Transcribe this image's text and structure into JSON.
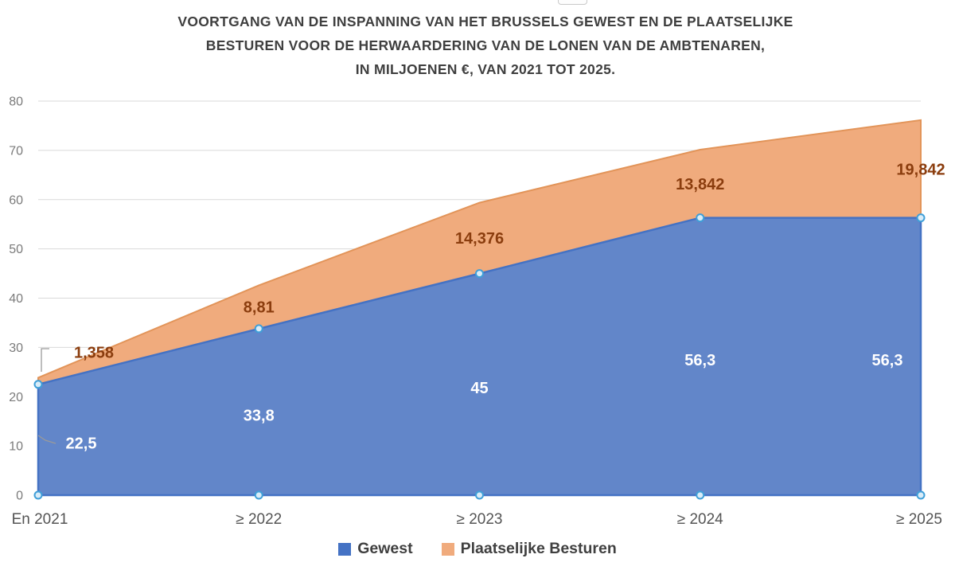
{
  "title": {
    "line1": "VOORTGANG VAN DE INSPANNING VAN HET BRUSSELS GEWEST EN DE PLAATSELIJKE",
    "line2": "BESTUREN VOOR DE HERWAARDERING VAN DE LONEN VAN DE AMBTENAREN,",
    "line3": "IN MILJOENEN €, VAN 2021 TOT 2025."
  },
  "chart_data": {
    "type": "area",
    "stacked": true,
    "title": "VOORTGANG VAN DE INSPANNING VAN HET BRUSSELS GEWEST EN DE PLAATSELIJKE BESTUREN VOOR DE HERWAARDERING VAN DE LONEN VAN DE AMBTENAREN, IN MILJOENEN €, VAN 2021 TOT 2025.",
    "categories": [
      "En 2021",
      "≥ 2022",
      "≥ 2023",
      "≥ 2024",
      "≥ 2025"
    ],
    "series": [
      {
        "name": "Gewest",
        "values": [
          22.5,
          33.8,
          45,
          56.3,
          56.3
        ],
        "labels": [
          "22,5",
          "33,8",
          "45",
          "56,3",
          "56,3"
        ],
        "color": "#6286C9",
        "edge_color": "#4472C4",
        "label_color": "#FFFFFF"
      },
      {
        "name": "Plaatselijke Besturen",
        "values": [
          1.358,
          8.81,
          14.376,
          13.842,
          19.842
        ],
        "labels": [
          "1,358",
          "8,81",
          "14,376",
          "13,842",
          "19,842"
        ],
        "color": "#F0AB7D",
        "edge_color": "#E29459",
        "label_color": "#8B3D0E"
      }
    ],
    "stacked_totals": [
      23.858,
      42.61,
      59.376,
      70.142,
      76.142
    ],
    "ylim": [
      0,
      80
    ],
    "yticks": [
      0,
      10,
      20,
      30,
      40,
      50,
      60,
      70,
      80
    ],
    "grid": true,
    "legend_position": "bottom",
    "axis_colors": {
      "ytick": "#7B7B7B",
      "xtick": "#545454",
      "gridline": "#D9D9D9"
    },
    "marker": {
      "fill": "#D9ECF8",
      "stroke": "#3F9FD8"
    },
    "leader_line_color": "#9A9A9A"
  }
}
